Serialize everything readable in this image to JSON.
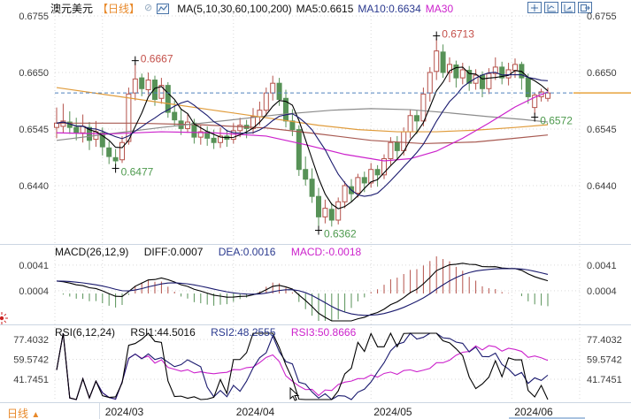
{
  "header": {
    "title": "澳元美元",
    "period": "【日线】",
    "ma_group": "MA(5,10,30,60,100,200)",
    "ma5": "MA5:0.6615",
    "ma10": "MA10:0.6634",
    "ma30": "MA30"
  },
  "macd_panel": {
    "label": "MACD(26,12,9)",
    "diff": "DIFF:0.0007",
    "dea": "DEA:0.0016",
    "macd": "MACD:-0.0018",
    "y_ticks": [
      {
        "label": "0.0041",
        "value": 0.0041
      },
      {
        "label": "0.0004",
        "value": 0.0004
      }
    ],
    "params": {
      "slow": 26,
      "fast": 12,
      "signal": 9
    }
  },
  "rsi_panel": {
    "label": "RSI(6,12,24)",
    "rsi1": "RSI1:44.5016",
    "rsi2": "RSI2:48.2555",
    "rsi3": "RSI3:50.8666",
    "periods": [
      6,
      12,
      24
    ],
    "y_ticks": [
      {
        "label": "77.4032",
        "value": 77.4032
      },
      {
        "label": "59.5742",
        "value": 59.5742
      },
      {
        "label": "41.7451",
        "value": 41.7451
      }
    ]
  },
  "bottom": {
    "period_label": "日线",
    "months": [
      {
        "label": "2024/03",
        "idx": 7
      },
      {
        "label": "2024/04",
        "idx": 27
      },
      {
        "label": "2024/05",
        "idx": 48
      },
      {
        "label": "2024/06",
        "idx": 69.5
      }
    ]
  },
  "colors": {
    "up": "#b5524b",
    "down": "#579257",
    "ma5": "#000000",
    "ma10": "#1a1a6e",
    "ma30": "#cc22cc",
    "ma60": "#e09c3c",
    "ma100": "#8c8c8c",
    "ma200": "#a85a52",
    "dashed": "#4f81bd",
    "price_line": "#e8a33d",
    "hist_pos": "#b5524b",
    "hist_neg": "#579257",
    "diff": "#000000",
    "dea": "#1a1a6e",
    "rsi1": "#000000",
    "rsi2": "#1a1a6e",
    "rsi3": "#cc22cc",
    "grid": "#d9d9d9",
    "axis_text": "#3c3c3c",
    "ann_high": "#c4504a",
    "ann_low": "#4e9a4e"
  },
  "chart_data": [
    {
      "type": "candlestick",
      "title": "澳元美元 日线 (AUD/USD daily)",
      "y_ticks": [
        {
          "label": "0.6755",
          "value": 0.6755
        },
        {
          "label": "0.6650",
          "value": 0.665
        },
        {
          "label": "0.6545",
          "value": 0.6545
        },
        {
          "label": "0.6440",
          "value": 0.644
        }
      ],
      "ylim": [
        0.6338,
        0.6762
      ],
      "current_price": 0.6612,
      "annotations": [
        {
          "idx": 12,
          "price": 0.6667,
          "label": "0.6667",
          "kind": "high"
        },
        {
          "idx": 9,
          "price": 0.6477,
          "label": "0.6477",
          "kind": "low"
        },
        {
          "idx": 40,
          "price": 0.6362,
          "label": "0.6362",
          "kind": "low"
        },
        {
          "idx": 58,
          "price": 0.6713,
          "label": "0.6713",
          "kind": "high"
        },
        {
          "idx": 73,
          "price": 0.6572,
          "label": "0.6572",
          "kind": "low"
        }
      ],
      "candles": [
        [
          0.6548,
          0.6585,
          0.6528,
          0.6556
        ],
        [
          0.655,
          0.6592,
          0.6538,
          0.656
        ],
        [
          0.6558,
          0.6578,
          0.6536,
          0.6548
        ],
        [
          0.6548,
          0.6566,
          0.6524,
          0.6538
        ],
        [
          0.6538,
          0.6572,
          0.652,
          0.655
        ],
        [
          0.6548,
          0.6558,
          0.6506,
          0.6524
        ],
        [
          0.6526,
          0.656,
          0.6512,
          0.654
        ],
        [
          0.6538,
          0.6548,
          0.6496,
          0.6512
        ],
        [
          0.651,
          0.6522,
          0.648,
          0.6494
        ],
        [
          0.6492,
          0.6508,
          0.6477,
          0.6486
        ],
        [
          0.6488,
          0.6532,
          0.6482,
          0.652
        ],
        [
          0.6522,
          0.6622,
          0.6516,
          0.661
        ],
        [
          0.6612,
          0.6667,
          0.6598,
          0.6638
        ],
        [
          0.664,
          0.6648,
          0.6606,
          0.662
        ],
        [
          0.6618,
          0.665,
          0.6608,
          0.6636
        ],
        [
          0.6636,
          0.6644,
          0.6588,
          0.66
        ],
        [
          0.6602,
          0.664,
          0.6592,
          0.6626
        ],
        [
          0.6626,
          0.6632,
          0.6566,
          0.6576
        ],
        [
          0.6576,
          0.6598,
          0.655,
          0.6562
        ],
        [
          0.656,
          0.6582,
          0.6534,
          0.6546
        ],
        [
          0.6546,
          0.6572,
          0.6538,
          0.6558
        ],
        [
          0.6556,
          0.6564,
          0.6518,
          0.653
        ],
        [
          0.653,
          0.6552,
          0.6516,
          0.654
        ],
        [
          0.654,
          0.655,
          0.6514,
          0.6528
        ],
        [
          0.6528,
          0.6544,
          0.6508,
          0.652
        ],
        [
          0.652,
          0.6548,
          0.651,
          0.6532
        ],
        [
          0.6532,
          0.6544,
          0.6512,
          0.6526
        ],
        [
          0.6526,
          0.6556,
          0.6518,
          0.6542
        ],
        [
          0.6542,
          0.6566,
          0.653,
          0.6552
        ],
        [
          0.6552,
          0.6562,
          0.6528,
          0.6546
        ],
        [
          0.6546,
          0.6584,
          0.6536,
          0.6568
        ],
        [
          0.6568,
          0.6596,
          0.6552,
          0.658
        ],
        [
          0.658,
          0.6622,
          0.657,
          0.6612
        ],
        [
          0.6612,
          0.6644,
          0.6598,
          0.663
        ],
        [
          0.663,
          0.664,
          0.6588,
          0.66
        ],
        [
          0.6602,
          0.6618,
          0.6548,
          0.656
        ],
        [
          0.656,
          0.6582,
          0.6532,
          0.6544
        ],
        [
          0.6544,
          0.6552,
          0.6458,
          0.647
        ],
        [
          0.647,
          0.6494,
          0.644,
          0.6452
        ],
        [
          0.6452,
          0.6472,
          0.6408,
          0.642
        ],
        [
          0.642,
          0.6436,
          0.6362,
          0.6382
        ],
        [
          0.6382,
          0.6414,
          0.637,
          0.6398
        ],
        [
          0.6396,
          0.6408,
          0.6364,
          0.6376
        ],
        [
          0.6376,
          0.6418,
          0.6368,
          0.641
        ],
        [
          0.641,
          0.6448,
          0.6398,
          0.644
        ],
        [
          0.6438,
          0.6452,
          0.641,
          0.6425
        ],
        [
          0.6426,
          0.6462,
          0.6418,
          0.6455
        ],
        [
          0.6455,
          0.6466,
          0.6428,
          0.6445
        ],
        [
          0.6445,
          0.6482,
          0.6436,
          0.647
        ],
        [
          0.647,
          0.6478,
          0.6438,
          0.646
        ],
        [
          0.646,
          0.6498,
          0.6452,
          0.649
        ],
        [
          0.649,
          0.653,
          0.6478,
          0.652
        ],
        [
          0.652,
          0.6532,
          0.6488,
          0.6505
        ],
        [
          0.6505,
          0.6548,
          0.6496,
          0.654
        ],
        [
          0.654,
          0.6582,
          0.6528,
          0.657
        ],
        [
          0.657,
          0.658,
          0.6536,
          0.656
        ],
        [
          0.656,
          0.6622,
          0.655,
          0.661
        ],
        [
          0.6612,
          0.666,
          0.6596,
          0.665
        ],
        [
          0.6652,
          0.6713,
          0.6636,
          0.669
        ],
        [
          0.6688,
          0.6702,
          0.664,
          0.665
        ],
        [
          0.665,
          0.6678,
          0.6632,
          0.6665
        ],
        [
          0.6664,
          0.6672,
          0.6622,
          0.664
        ],
        [
          0.664,
          0.6668,
          0.6628,
          0.6655
        ],
        [
          0.6654,
          0.6662,
          0.6616,
          0.663
        ],
        [
          0.663,
          0.6656,
          0.6618,
          0.6645
        ],
        [
          0.6645,
          0.6652,
          0.6604,
          0.662
        ],
        [
          0.662,
          0.6658,
          0.661,
          0.6648
        ],
        [
          0.6648,
          0.6678,
          0.6636,
          0.666
        ],
        [
          0.666,
          0.667,
          0.6628,
          0.664
        ],
        [
          0.664,
          0.6668,
          0.6626,
          0.6655
        ],
        [
          0.6654,
          0.6676,
          0.664,
          0.6665
        ],
        [
          0.6665,
          0.667,
          0.6618,
          0.664
        ],
        [
          0.664,
          0.6648,
          0.6592,
          0.6605
        ],
        [
          0.6585,
          0.6612,
          0.6572,
          0.6608
        ],
        [
          0.6605,
          0.662,
          0.6596,
          0.6614
        ],
        [
          0.6602,
          0.6622,
          0.6596,
          0.6612
        ]
      ],
      "ma_overlays": {
        "ma30_points": [
          [
            0,
            0.6538
          ],
          [
            8,
            0.6536
          ],
          [
            16,
            0.654
          ],
          [
            24,
            0.6538
          ],
          [
            32,
            0.6532
          ],
          [
            38,
            0.6516
          ],
          [
            44,
            0.6498
          ],
          [
            50,
            0.6486
          ],
          [
            54,
            0.649
          ],
          [
            58,
            0.6504
          ],
          [
            62,
            0.6528
          ],
          [
            66,
            0.6556
          ],
          [
            70,
            0.6586
          ],
          [
            73,
            0.6604
          ],
          [
            75,
            0.6614
          ]
        ],
        "ma60_points": [
          [
            0,
            0.6622
          ],
          [
            8,
            0.6608
          ],
          [
            16,
            0.6594
          ],
          [
            24,
            0.658
          ],
          [
            32,
            0.6566
          ],
          [
            40,
            0.6552
          ],
          [
            46,
            0.6544
          ],
          [
            52,
            0.654
          ],
          [
            58,
            0.654
          ],
          [
            64,
            0.6543
          ],
          [
            70,
            0.6548
          ],
          [
            75,
            0.6553
          ]
        ],
        "ma100_points": [
          [
            0,
            0.6524
          ],
          [
            8,
            0.6536
          ],
          [
            16,
            0.6548
          ],
          [
            26,
            0.6561
          ],
          [
            34,
            0.6572
          ],
          [
            42,
            0.658
          ],
          [
            48,
            0.6583
          ],
          [
            54,
            0.6581
          ],
          [
            60,
            0.6575
          ],
          [
            66,
            0.6568
          ],
          [
            71,
            0.6563
          ],
          [
            75,
            0.6558
          ]
        ],
        "ma200_points": [
          [
            0,
            0.6556
          ],
          [
            12,
            0.6556
          ],
          [
            22,
            0.6553
          ],
          [
            32,
            0.6547
          ],
          [
            40,
            0.6536
          ],
          [
            48,
            0.6524
          ],
          [
            56,
            0.6518
          ],
          [
            64,
            0.6521
          ],
          [
            70,
            0.6528
          ],
          [
            75,
            0.6534
          ]
        ]
      }
    },
    {
      "type": "bar",
      "name": "MACD histogram + DIFF/DEA lines",
      "derived_from": "candles closes, MACD(26,12,9), MACD = 2*(DIFF-DEA)",
      "visible_values": {
        "diff": 0.0007,
        "dea": 0.0016,
        "macd": -0.0018
      },
      "ylim": [
        -0.0038,
        0.0054
      ]
    },
    {
      "type": "line",
      "name": "RSI(6,12,24)",
      "derived_from": "candles closes",
      "visible_values": {
        "rsi1": 44.5016,
        "rsi2": 48.2555,
        "rsi3": 50.8666
      },
      "ylim": [
        26,
        84
      ]
    }
  ]
}
